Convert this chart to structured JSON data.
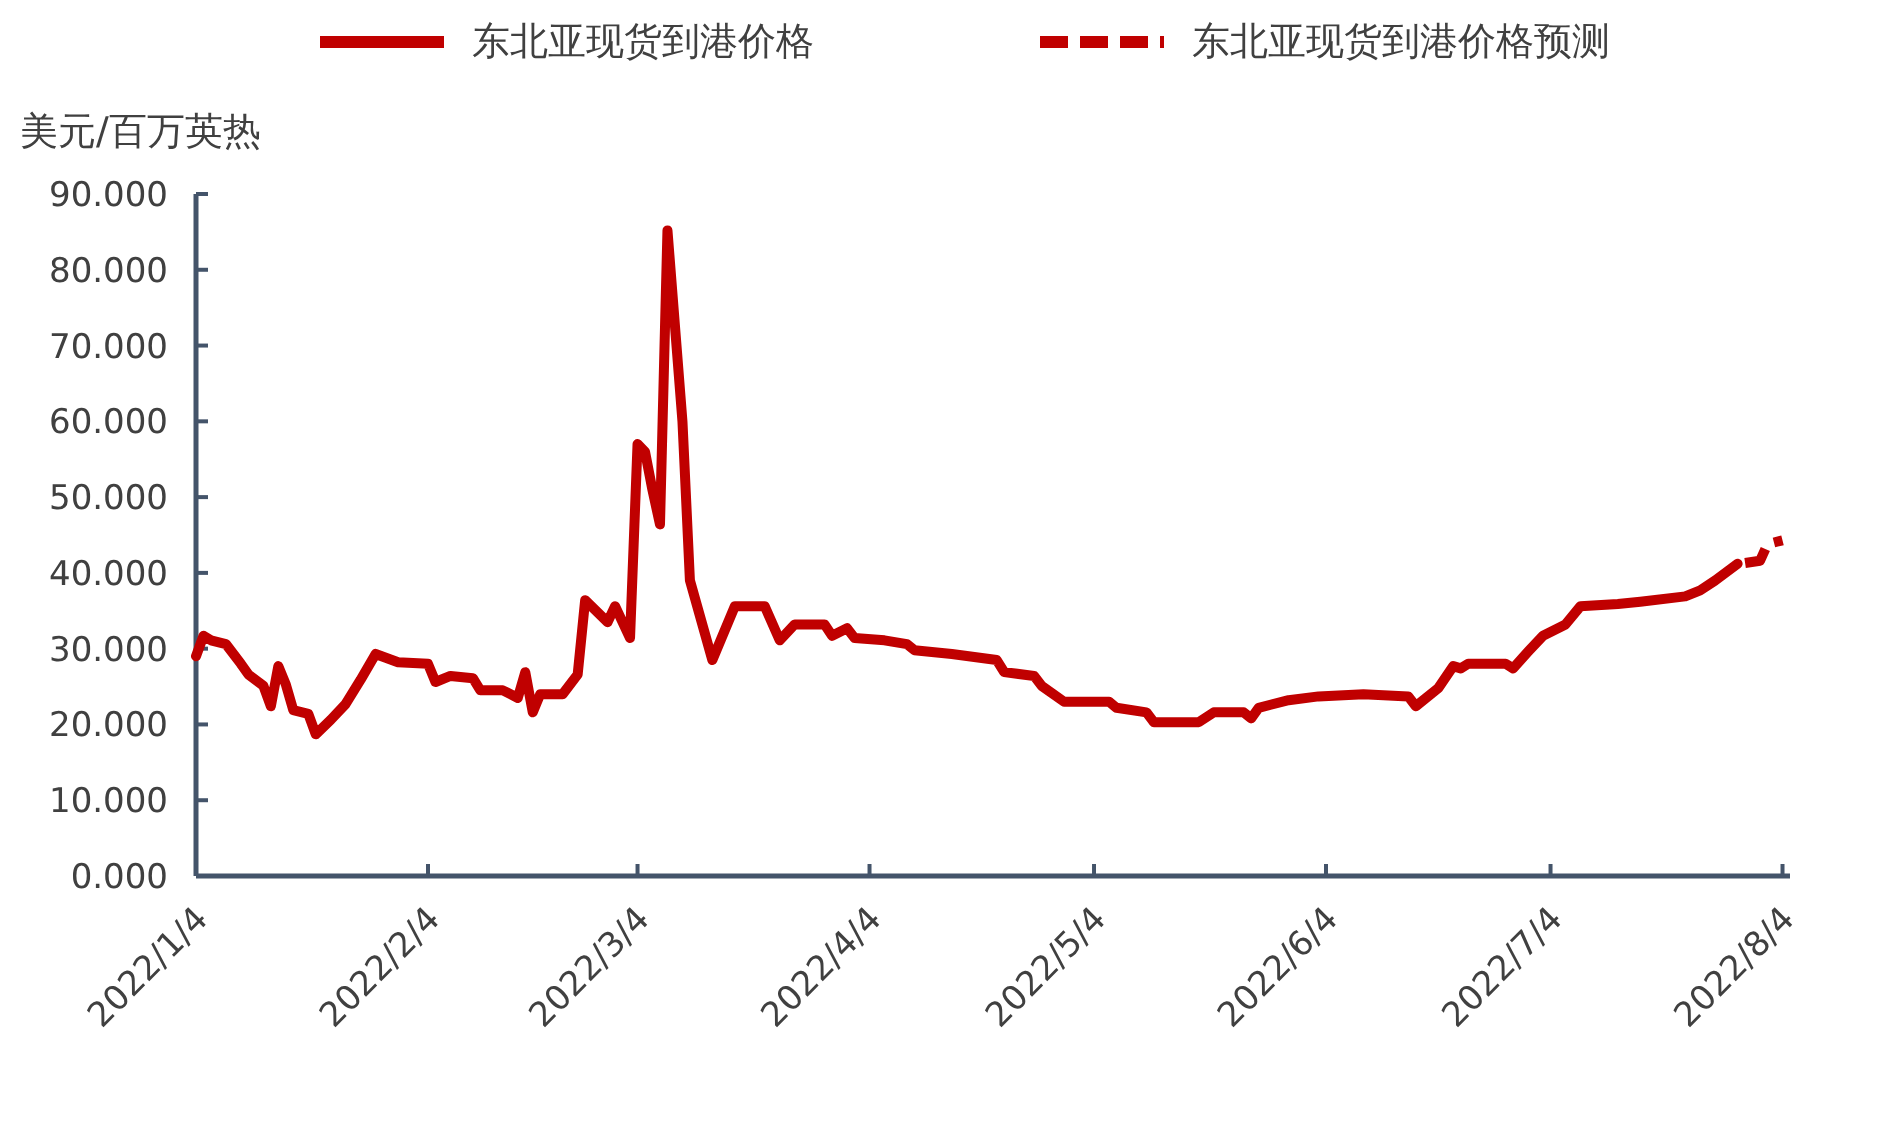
{
  "chart_data": {
    "type": "line",
    "ylabel": "美元/百万英热",
    "legend": "top",
    "grid": false,
    "marker": "none",
    "xlim": [
      "2022-01-04",
      "2022-08-05"
    ],
    "xticks": [
      {
        "value": "2022-01-04",
        "label": "2022/1/4"
      },
      {
        "value": "2022-02-04",
        "label": "2022/2/4"
      },
      {
        "value": "2022-03-04",
        "label": "2022/3/4"
      },
      {
        "value": "2022-04-04",
        "label": "2022/4/4"
      },
      {
        "value": "2022-05-04",
        "label": "2022/5/4"
      },
      {
        "value": "2022-06-04",
        "label": "2022/6/4"
      },
      {
        "value": "2022-07-04",
        "label": "2022/7/4"
      },
      {
        "value": "2022-08-04",
        "label": "2022/8/4"
      }
    ],
    "ylim": [
      0,
      90
    ],
    "yticks": [
      {
        "value": 0,
        "label": "0.000"
      },
      {
        "value": 10,
        "label": "10.000"
      },
      {
        "value": 20,
        "label": "20.000"
      },
      {
        "value": 30,
        "label": "30.000"
      },
      {
        "value": 40,
        "label": "40.000"
      },
      {
        "value": 50,
        "label": "50.000"
      },
      {
        "value": 60,
        "label": "60.000"
      },
      {
        "value": 70,
        "label": "70.000"
      },
      {
        "value": 80,
        "label": "80.000"
      },
      {
        "value": 90,
        "label": "90.000"
      }
    ],
    "series": [
      {
        "name": "东北亚现货到港价格",
        "color": "#c00000",
        "line_style": "solid",
        "x": [
          "2022-01-04",
          "2022-01-05",
          "2022-01-06",
          "2022-01-08",
          "2022-01-10",
          "2022-01-11",
          "2022-01-13",
          "2022-01-14",
          "2022-01-15",
          "2022-01-16",
          "2022-01-17",
          "2022-01-19",
          "2022-01-20",
          "2022-01-22",
          "2022-01-24",
          "2022-01-26",
          "2022-01-28",
          "2022-01-31",
          "2022-02-04",
          "2022-02-05",
          "2022-02-07",
          "2022-02-10",
          "2022-02-11",
          "2022-02-14",
          "2022-02-16",
          "2022-02-17",
          "2022-02-18",
          "2022-02-19",
          "2022-02-22",
          "2022-02-24",
          "2022-02-25",
          "2022-02-28",
          "2022-03-01",
          "2022-03-03",
          "2022-03-04",
          "2022-03-05",
          "2022-03-06",
          "2022-03-07",
          "2022-03-08",
          "2022-03-10",
          "2022-03-11",
          "2022-03-14",
          "2022-03-17",
          "2022-03-21",
          "2022-03-23",
          "2022-03-25",
          "2022-03-29",
          "2022-03-30",
          "2022-04-01",
          "2022-04-02",
          "2022-04-06",
          "2022-04-09",
          "2022-04-10",
          "2022-04-15",
          "2022-04-21",
          "2022-04-22",
          "2022-04-26",
          "2022-04-27",
          "2022-04-30",
          "2022-05-06",
          "2022-05-07",
          "2022-05-11",
          "2022-05-12",
          "2022-05-18",
          "2022-05-20",
          "2022-05-24",
          "2022-05-25",
          "2022-05-26",
          "2022-05-30",
          "2022-06-03",
          "2022-06-09",
          "2022-06-15",
          "2022-06-16",
          "2022-06-19",
          "2022-06-21",
          "2022-06-22",
          "2022-06-23",
          "2022-06-28",
          "2022-06-29",
          "2022-07-01",
          "2022-07-03",
          "2022-07-06",
          "2022-07-08",
          "2022-07-13",
          "2022-07-16",
          "2022-07-22",
          "2022-07-24",
          "2022-07-26",
          "2022-07-29"
        ],
        "values": [
          29.0,
          31.7,
          31.1,
          30.6,
          28.0,
          26.6,
          25.1,
          22.4,
          27.7,
          25.3,
          21.9,
          21.4,
          18.7,
          20.6,
          22.7,
          25.9,
          29.3,
          28.2,
          28.0,
          25.6,
          26.4,
          26.1,
          24.5,
          24.5,
          23.5,
          26.9,
          21.6,
          24.0,
          24.0,
          26.6,
          36.4,
          33.5,
          35.6,
          31.4,
          57.0,
          56.0,
          50.9,
          46.4,
          85.2,
          60.0,
          39.0,
          28.5,
          35.6,
          35.6,
          31.1,
          33.2,
          33.2,
          31.7,
          32.7,
          31.4,
          31.1,
          30.6,
          29.8,
          29.3,
          28.5,
          26.9,
          26.4,
          25.1,
          23.0,
          23.0,
          22.2,
          21.6,
          20.3,
          20.3,
          21.6,
          21.6,
          20.8,
          22.2,
          23.2,
          23.7,
          24.0,
          23.7,
          22.4,
          24.8,
          27.7,
          27.4,
          28.0,
          28.0,
          27.4,
          29.6,
          31.7,
          33.2,
          35.6,
          35.9,
          36.2,
          36.9,
          37.7,
          39.0,
          41.2
        ]
      },
      {
        "name": "东北亚现货到港价格预测",
        "color": "#c00000",
        "line_style": "dashed",
        "x": [
          "2022-07-30",
          "2022-08-01",
          "2022-08-02",
          "2022-08-04"
        ],
        "values": [
          41.3,
          41.6,
          43.8,
          44.3
        ]
      }
    ]
  }
}
